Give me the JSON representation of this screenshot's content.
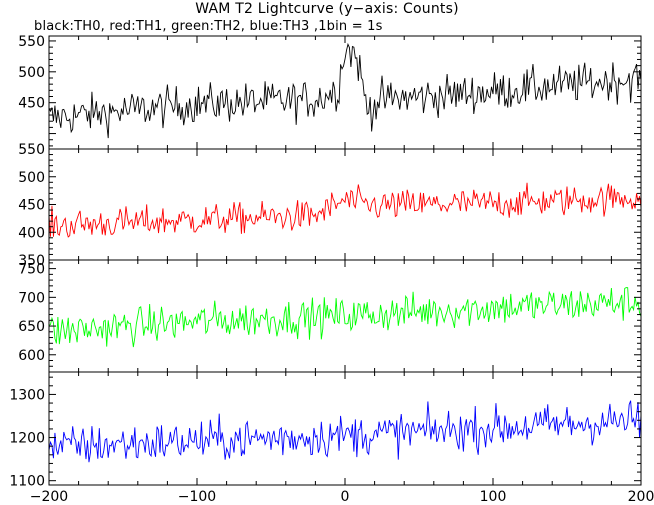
{
  "chart_data": {
    "type": "line",
    "title": "WAM T2 Lightcurve (y−axis: Counts)",
    "subtitle": "black:TH0, red:TH1, green:TH2, blue:TH3 ,1bin = 1s",
    "x_range": [
      -200,
      200
    ],
    "x_ticks": [
      -200,
      -100,
      0,
      100,
      200
    ],
    "x_tick_labels": [
      "−200",
      "−100",
      "0",
      "100",
      "200"
    ],
    "grid": false,
    "panels": [
      {
        "name": "TH0",
        "color": "#000000",
        "ylim": [
          375,
          558
        ],
        "y_ticks": [
          400,
          450,
          500,
          550
        ],
        "y_tick_labels": [
          "",
          "450",
          "500",
          "550"
        ],
        "trend": [
          [
            -200,
            425
          ],
          [
            -100,
            448
          ],
          [
            -20,
            455
          ],
          [
            -5,
            470
          ],
          [
            0,
            540
          ],
          [
            8,
            525
          ],
          [
            15,
            440
          ],
          [
            25,
            455
          ],
          [
            100,
            468
          ],
          [
            200,
            490
          ]
        ],
        "noise": 16
      },
      {
        "name": "TH1",
        "color": "#ff0000",
        "ylim": [
          350,
          550
        ],
        "y_ticks": [
          350,
          400,
          450,
          500,
          550
        ],
        "y_tick_labels": [
          "350",
          "400",
          "450",
          "500",
          "550"
        ],
        "trend": [
          [
            -200,
            412
          ],
          [
            -100,
            422
          ],
          [
            -20,
            430
          ],
          [
            0,
            458
          ],
          [
            15,
            448
          ],
          [
            100,
            452
          ],
          [
            200,
            463
          ]
        ],
        "noise": 14
      },
      {
        "name": "TH2",
        "color": "#00ff00",
        "ylim": [
          570,
          765
        ],
        "y_ticks": [
          600,
          650,
          700,
          750
        ],
        "y_tick_labels": [
          "600",
          "650",
          "700",
          "750"
        ],
        "trend": [
          [
            -200,
            640
          ],
          [
            -100,
            658
          ],
          [
            0,
            668
          ],
          [
            100,
            682
          ],
          [
            200,
            692
          ]
        ],
        "noise": 16
      },
      {
        "name": "TH3",
        "color": "#0000ff",
        "ylim": [
          1090,
          1352
        ],
        "y_ticks": [
          1100,
          1200,
          1300
        ],
        "y_tick_labels": [
          "1100",
          "1200",
          "1300"
        ],
        "trend": [
          [
            -200,
            1178
          ],
          [
            -100,
            1192
          ],
          [
            0,
            1205
          ],
          [
            100,
            1222
          ],
          [
            200,
            1240
          ]
        ],
        "noise": 24
      }
    ]
  }
}
